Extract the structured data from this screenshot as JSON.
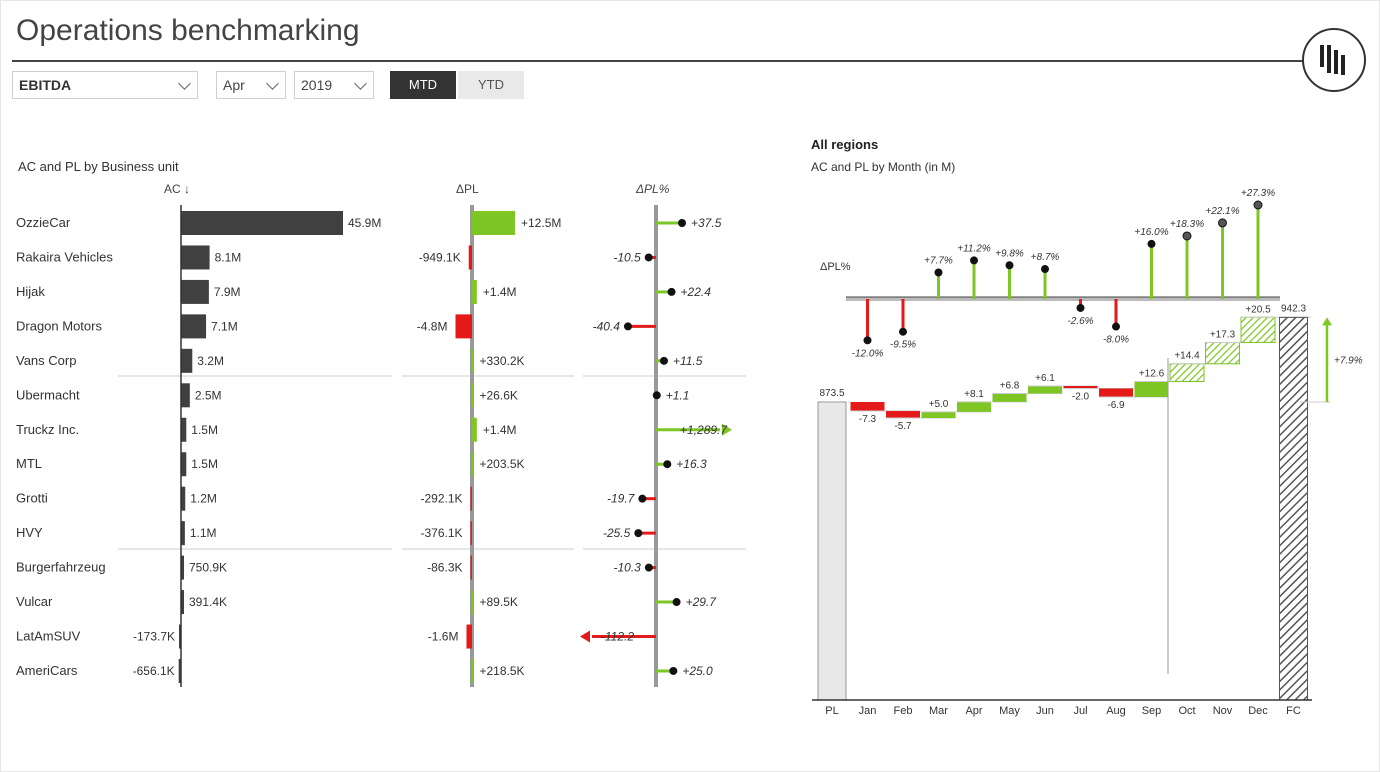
{
  "header": {
    "title": "Operations benchmarking"
  },
  "filters": {
    "measure": "EBITDA",
    "month": "Apr",
    "year": "2019",
    "mtd_label": "MTD",
    "ytd_label": "YTD",
    "selected": "MTD"
  },
  "left_panel": {
    "title": "AC and PL by Business unit",
    "col_ac": "AC ↓",
    "col_dpl": "ΔPL",
    "col_dplpct": "ΔPL%"
  },
  "right_panel": {
    "region": "All regions",
    "title": "AC and PL by Month (in M)",
    "dpl_label": "ΔPL%"
  },
  "chart_data": [
    {
      "type": "bar",
      "title": "AC and PL by Business unit",
      "categories": [
        "OzzieCar",
        "Rakaira Vehicles",
        "Hijak",
        "Dragon Motors",
        "Vans Corp",
        "Ubermacht",
        "Truckz Inc.",
        "MTL",
        "Grotti",
        "HVY",
        "Burgerfahrzeug",
        "Vulcar",
        "LatAmSUV",
        "AmeriCars"
      ],
      "series": [
        {
          "name": "AC ↓",
          "values": [
            45.9,
            8.1,
            7.9,
            7.1,
            3.2,
            2.5,
            1.5,
            1.5,
            1.2,
            1.1,
            0.7509,
            0.3914,
            -0.1737,
            -0.6561
          ],
          "labels": [
            "45.9M",
            "8.1M",
            "7.9M",
            "7.1M",
            "3.2M",
            "2.5M",
            "1.5M",
            "1.5M",
            "1.2M",
            "1.1M",
            "750.9K",
            "391.4K",
            "-173.7K",
            "-656.1K"
          ]
        },
        {
          "name": "ΔPL",
          "values": [
            12.5,
            -0.9491,
            1.4,
            -4.8,
            0.3302,
            0.0266,
            1.4,
            0.2035,
            -0.2921,
            -0.3761,
            -0.0863,
            0.0895,
            -1.6,
            0.2185
          ],
          "labels": [
            "+12.5M",
            "-949.1K",
            "+1.4M",
            "-4.8M",
            "+330.2K",
            "+26.6K",
            "+1.4M",
            "+203.5K",
            "-292.1K",
            "-376.1K",
            "-86.3K",
            "+89.5K",
            "-1.6M",
            "+218.5K"
          ]
        },
        {
          "name": "ΔPL%",
          "values": [
            37.5,
            -10.5,
            22.4,
            -40.4,
            11.5,
            1.1,
            1289.7,
            16.3,
            -19.7,
            -25.5,
            -10.3,
            29.7,
            -112.2,
            25.0
          ],
          "labels": [
            "+37.5",
            "-10.5",
            "+22.4",
            "-40.4",
            "+11.5",
            "+1.1",
            "+1,289.7",
            "+16.3",
            "-19.7",
            "-25.5",
            "-10.3",
            "+29.7",
            "-112.2",
            "+25.0"
          ]
        }
      ],
      "colors": {
        "ac": "#404040",
        "positive": "#7dc623",
        "negative": "#e41a1a"
      }
    },
    {
      "type": "line",
      "title": "ΔPL%",
      "categories": [
        "Jan",
        "Feb",
        "Mar",
        "Apr",
        "May",
        "Jun",
        "Jul",
        "Aug",
        "Sep",
        "Oct",
        "Nov",
        "Dec"
      ],
      "values": [
        -12.0,
        -9.5,
        7.7,
        11.2,
        9.8,
        8.7,
        -2.6,
        -8.0,
        16.0,
        18.3,
        22.1,
        27.3
      ],
      "labels": [
        "-12.0%",
        "-9.5%",
        "+7.7%",
        "+11.2%",
        "+9.8%",
        "+8.7%",
        "-2.6%",
        "-8.0%",
        "+16.0%",
        "+18.3%",
        "+22.1%",
        "+27.3%"
      ],
      "forecast_from": "Oct"
    },
    {
      "type": "bar",
      "title": "AC and PL by Month (in M)",
      "categories": [
        "PL",
        "Jan",
        "Feb",
        "Mar",
        "Apr",
        "May",
        "Jun",
        "Jul",
        "Aug",
        "Sep",
        "Oct",
        "Nov",
        "Dec",
        "FC"
      ],
      "start": 873.5,
      "end": 942.3,
      "start_label": "873.5",
      "end_label": "942.3",
      "deltas": [
        -7.3,
        -5.7,
        5.0,
        8.1,
        6.8,
        6.1,
        -2.0,
        -6.9,
        12.6,
        14.4,
        17.3,
        20.5
      ],
      "delta_labels": [
        "-7.3",
        "-5.7",
        "+5.0",
        "+8.1",
        "+6.8",
        "+6.1",
        "-2.0",
        "-6.9",
        "+12.6",
        "+14.4",
        "+17.3",
        "+20.5"
      ],
      "total_change_label": "+7.9%",
      "forecast_from": "Oct"
    }
  ]
}
